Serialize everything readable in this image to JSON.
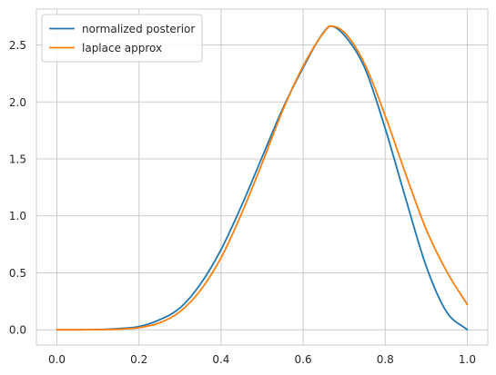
{
  "chart_data": {
    "type": "line",
    "title": "",
    "xlabel": "",
    "ylabel": "",
    "xlim": [
      -0.05,
      1.05
    ],
    "ylim": [
      -0.134,
      2.815
    ],
    "xticks": [
      0.0,
      0.2,
      0.4,
      0.6,
      0.8,
      1.0
    ],
    "xtick_labels": [
      "0.0",
      "0.2",
      "0.4",
      "0.6",
      "0.8",
      "1.0"
    ],
    "yticks": [
      0.0,
      0.5,
      1.0,
      1.5,
      2.0,
      2.5
    ],
    "ytick_labels": [
      "0.0",
      "0.5",
      "1.0",
      "1.5",
      "2.0",
      "2.5"
    ],
    "grid": true,
    "legend_position": "top-left",
    "x": [
      0.0,
      0.05,
      0.1,
      0.15,
      0.2,
      0.25,
      0.3,
      0.35,
      0.4,
      0.45,
      0.5,
      0.55,
      0.6,
      0.65,
      0.667,
      0.7,
      0.75,
      0.8,
      0.85,
      0.9,
      0.95,
      1.0
    ],
    "series": [
      {
        "name": "normalized posterior",
        "color": "#1f77b4",
        "values": [
          0.0,
          0.0001,
          0.0024,
          0.0106,
          0.028,
          0.0874,
          0.1919,
          0.4028,
          0.7043,
          1.0902,
          1.5153,
          1.9396,
          2.3007,
          2.6127,
          2.666,
          2.5868,
          2.3001,
          1.7664,
          1.1501,
          0.5563,
          0.1547,
          0.0
        ]
      },
      {
        "name": "laplace approx",
        "color": "#ff7f0e",
        "values": [
          0.0,
          0.0001,
          0.0009,
          0.0047,
          0.0187,
          0.0602,
          0.1597,
          0.3473,
          0.6325,
          1.0191,
          1.4621,
          1.9241,
          2.3138,
          2.6086,
          2.666,
          2.612,
          2.3325,
          1.8787,
          1.3652,
          0.8801,
          0.5106,
          0.2218
        ]
      }
    ]
  }
}
